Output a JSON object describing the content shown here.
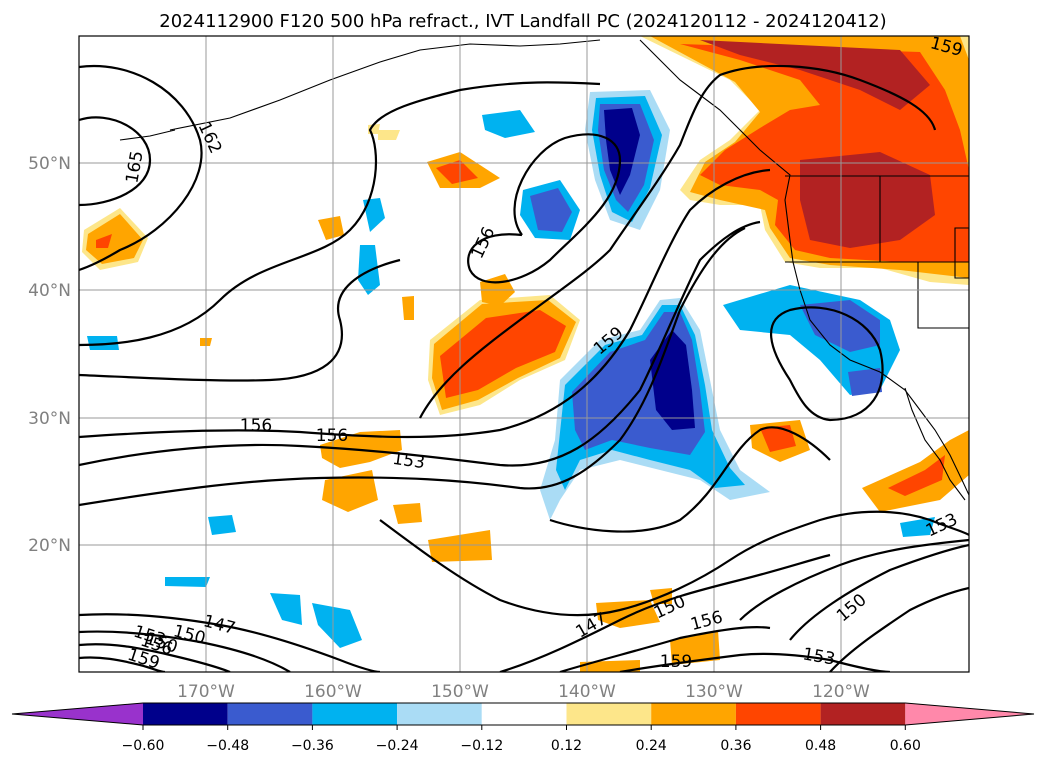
{
  "title": "2024112900 F120 500 hPa refract., IVT Landfall PC (2024120112 - 2024120412)",
  "map": {
    "lon_labels": [
      "170°W",
      "160°W",
      "150°W",
      "140°W",
      "130°W",
      "120°W"
    ],
    "lat_labels": [
      "50°N",
      "40°N",
      "30°N",
      "20°N"
    ],
    "contour_labels": [
      "165",
      "162",
      "156",
      "159",
      "156",
      "156",
      "153",
      "150",
      "147",
      "150",
      "153",
      "156",
      "159",
      "147",
      "150",
      "153",
      "156",
      "159",
      "150",
      "153",
      "159"
    ]
  },
  "colorbar": {
    "ticks": [
      "−0.60",
      "−0.48",
      "−0.36",
      "−0.24",
      "−0.12",
      "0.12",
      "0.24",
      "0.36",
      "0.48",
      "0.60"
    ],
    "colors": [
      "#9932cc",
      "#00008b",
      "#3a5bcf",
      "#00b2f0",
      "#aadcf5",
      "#ffffff",
      "#fde68a",
      "#ffa500",
      "#ff4500",
      "#b22222",
      "#ff88aa"
    ]
  }
}
